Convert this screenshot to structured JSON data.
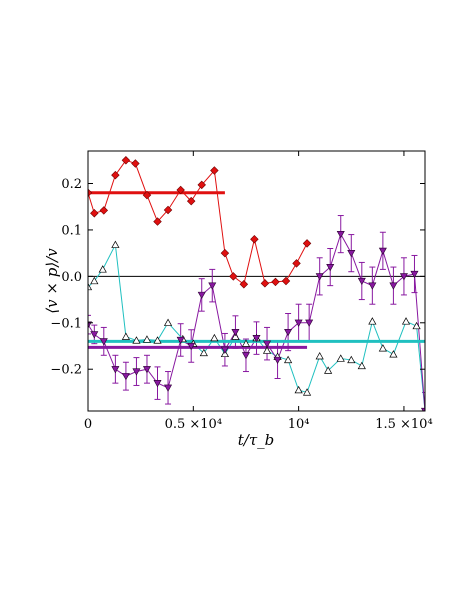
{
  "chart_data": {
    "type": "line",
    "title": "",
    "xlabel": "t/τ_b",
    "ylabel": "⟨v × p⟩/v",
    "xlim": [
      0,
      16000
    ],
    "ylim": [
      -0.29,
      0.27
    ],
    "grid": false,
    "x_ticks": [
      {
        "value": 0,
        "label": "0"
      },
      {
        "value": 5000,
        "label": "0.5 ×10⁴"
      },
      {
        "value": 10000,
        "label": "10⁴"
      },
      {
        "value": 15000,
        "label": "1.5 ×10⁴"
      }
    ],
    "y_ticks": [
      {
        "value": 0.2,
        "label": "0.2"
      },
      {
        "value": 0.1,
        "label": "0.1"
      },
      {
        "value": 0.0,
        "label": "0.0"
      },
      {
        "value": -0.1,
        "label": "−0.1"
      },
      {
        "value": -0.2,
        "label": "−0.2"
      }
    ],
    "zero_line": 0,
    "series": [
      {
        "color": "#e01010",
        "marker": "diamond",
        "x": [
          0,
          300,
          750,
          1300,
          1800,
          2250,
          2800,
          3300,
          3800,
          4400,
          4900,
          5400,
          6000,
          6500,
          6900,
          7400,
          7900,
          8400,
          8900,
          9400,
          9900,
          10400
        ],
        "y": [
          0.18,
          0.136,
          0.142,
          0.218,
          0.25,
          0.243,
          0.175,
          0.118,
          0.143,
          0.186,
          0.162,
          0.197,
          0.228,
          0.05,
          0.0,
          -0.017,
          0.08,
          -0.015,
          -0.012,
          -0.01,
          0.028,
          0.071
        ]
      },
      {
        "color": "#20c0c0",
        "marker": "triangle-up-open",
        "x": [
          0,
          300,
          700,
          1300,
          1800,
          2300,
          2800,
          3300,
          3800,
          4500,
          5000,
          5500,
          6000,
          6500,
          7000,
          7500,
          8000,
          8500,
          9000,
          9500,
          10000,
          10400,
          11000,
          11400,
          12000,
          12500,
          13000,
          13500,
          14000,
          14500,
          15100,
          15600,
          16000
        ],
        "y": [
          -0.023,
          -0.01,
          0.015,
          0.068,
          -0.13,
          -0.138,
          -0.136,
          -0.138,
          -0.1,
          -0.135,
          -0.145,
          -0.165,
          -0.133,
          -0.167,
          -0.13,
          -0.145,
          -0.133,
          -0.16,
          -0.173,
          -0.18,
          -0.245,
          -0.25,
          -0.172,
          -0.203,
          -0.177,
          -0.18,
          -0.193,
          -0.097,
          -0.155,
          -0.168,
          -0.097,
          -0.107,
          -0.29
        ]
      },
      {
        "color": "#8818a0",
        "marker": "triangle-down",
        "x": [
          0,
          300,
          750,
          1300,
          1800,
          2300,
          2800,
          3300,
          3800,
          4400,
          4900,
          5400,
          5900,
          6500,
          7000,
          7500,
          8000,
          8500,
          9000,
          9500,
          10000,
          10500,
          11000,
          11500,
          12000,
          12500,
          13000,
          13500,
          14000,
          14500,
          15000,
          15500,
          16000
        ],
        "y": [
          -0.104,
          -0.125,
          -0.14,
          -0.2,
          -0.215,
          -0.205,
          -0.2,
          -0.23,
          -0.24,
          -0.137,
          -0.15,
          -0.04,
          -0.02,
          -0.158,
          -0.12,
          -0.17,
          -0.133,
          -0.145,
          -0.18,
          -0.12,
          -0.1,
          -0.1,
          0.0,
          0.02,
          0.091,
          0.05,
          -0.01,
          -0.02,
          0.055,
          -0.02,
          0.0,
          0.005,
          -0.29
        ],
        "err": [
          0.02,
          0.02,
          0.03,
          0.03,
          0.03,
          0.03,
          0.03,
          0.035,
          0.035,
          0.035,
          0.035,
          0.035,
          0.035,
          0.035,
          0.035,
          0.035,
          0.035,
          0.035,
          0.04,
          0.04,
          0.04,
          0.04,
          0.04,
          0.04,
          0.04,
          0.04,
          0.04,
          0.04,
          0.04,
          0.04,
          0.04,
          0.04,
          0.04
        ]
      }
    ],
    "mean_segments": [
      {
        "color": "#e01010",
        "x0": 0,
        "x1": 6500,
        "y": 0.18
      },
      {
        "color": "#20c0c0",
        "x0": 0,
        "x1": 16000,
        "y": -0.14
      },
      {
        "color": "#8818a0",
        "x0": 0,
        "x1": 10400,
        "y": -0.153
      }
    ]
  }
}
